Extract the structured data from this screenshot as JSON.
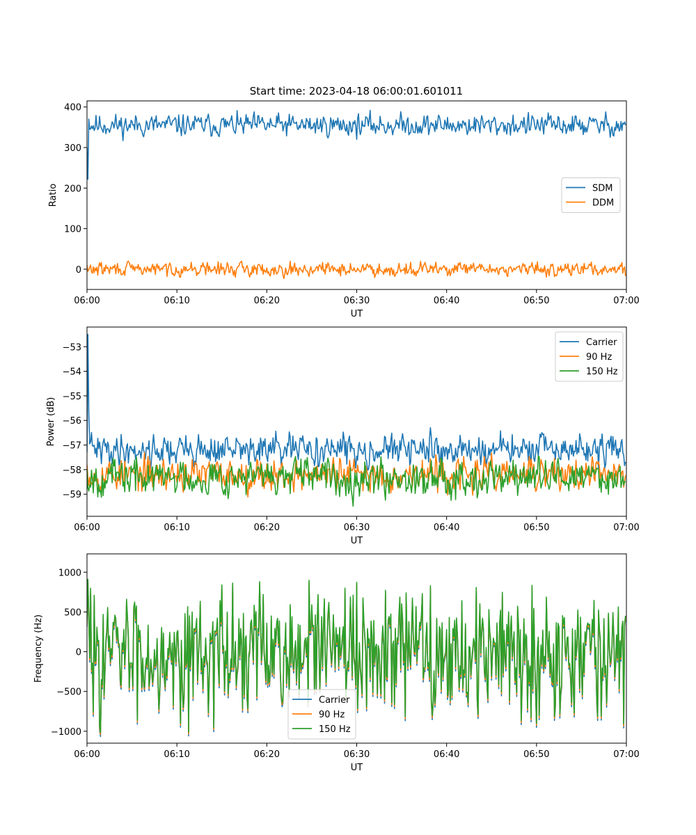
{
  "figure": {
    "title": "Start time: 2023-04-18 06:00:01.601011"
  },
  "colors": {
    "tab_blue": "#1f77b4",
    "tab_orange": "#ff7f0e",
    "tab_green": "#2ca02c"
  },
  "chart_data": [
    {
      "type": "line",
      "title": "Start time: 2023-04-18 06:00:01.601011",
      "xlabel": "UT",
      "ylabel": "Ratio",
      "xlim": [
        "06:00",
        "07:00"
      ],
      "ylim": [
        -50,
        415
      ],
      "xticks": [
        "06:00",
        "06:10",
        "06:20",
        "06:30",
        "06:40",
        "06:50",
        "07:00"
      ],
      "yticks": [
        0,
        100,
        200,
        300,
        400
      ],
      "grid": false,
      "legend": "center-right",
      "sampling": {
        "start": "06:00",
        "step_seconds": 6
      },
      "series": [
        {
          "name": "SDM",
          "color": "#1f77b4",
          "mean": 355,
          "spread": 13,
          "seed": 11,
          "start_values": [
            300,
            222,
            370
          ],
          "values": []
        },
        {
          "name": "DDM",
          "color": "#ff7f0e",
          "mean": 0,
          "spread": 8,
          "seed": 29,
          "start_values": [
            10,
            -5
          ],
          "values": []
        }
      ]
    },
    {
      "type": "line",
      "title": "",
      "xlabel": "UT",
      "ylabel": "Power (dB)",
      "xlim": [
        "06:00",
        "07:00"
      ],
      "ylim": [
        -59.9,
        -52.2
      ],
      "xticks": [
        "06:00",
        "06:10",
        "06:20",
        "06:30",
        "06:40",
        "06:50",
        "07:00"
      ],
      "yticks": [
        -59,
        -58,
        -57,
        -56,
        -55,
        -54,
        -53
      ],
      "grid": false,
      "legend": "upper-right",
      "sampling": {
        "start": "06:00",
        "step_seconds": 6
      },
      "series": [
        {
          "name": "Carrier",
          "color": "#1f77b4",
          "mean": -57.2,
          "spread": 0.3,
          "seed": 41,
          "start_values": [
            -57.3,
            -52.5,
            -55.7
          ],
          "values": []
        },
        {
          "name": "90 Hz",
          "color": "#ff7f0e",
          "mean": -58.2,
          "spread": 0.32,
          "seed": 53,
          "start_values": [
            -57.8
          ],
          "values": []
        },
        {
          "name": "150 Hz",
          "color": "#2ca02c",
          "mean": -58.3,
          "spread": 0.35,
          "seed": 67,
          "start_values": [
            -58.0
          ],
          "values": []
        }
      ]
    },
    {
      "type": "line",
      "title": "",
      "xlabel": "UT",
      "ylabel": "Frequency (Hz)",
      "xlim": [
        "06:00",
        "07:00"
      ],
      "ylim": [
        -1150,
        1230
      ],
      "xticks": [
        "06:00",
        "06:10",
        "06:20",
        "06:30",
        "06:40",
        "06:50",
        "07:00"
      ],
      "yticks": [
        -1000,
        -500,
        0,
        500,
        1000
      ],
      "grid": false,
      "legend": "lower-center",
      "sampling": {
        "start": "06:00",
        "step_seconds": 6
      },
      "series": [
        {
          "name": "Carrier",
          "color": "#1f77b4",
          "mean": 0,
          "spread": 380,
          "seed": 83,
          "start_values": [
            350,
            900,
            450
          ],
          "values": [],
          "offset_from_base": -40
        },
        {
          "name": "90 Hz",
          "color": "#ff7f0e",
          "mean": 0,
          "spread": 380,
          "seed": 83,
          "start_values": [
            350,
            900,
            450
          ],
          "values": [],
          "offset_from_base": -15
        },
        {
          "name": "150 Hz",
          "color": "#2ca02c",
          "mean": 0,
          "spread": 380,
          "seed": 83,
          "start_values": [
            350,
            900,
            450
          ],
          "values": [],
          "offset_from_base": 10
        }
      ]
    }
  ]
}
